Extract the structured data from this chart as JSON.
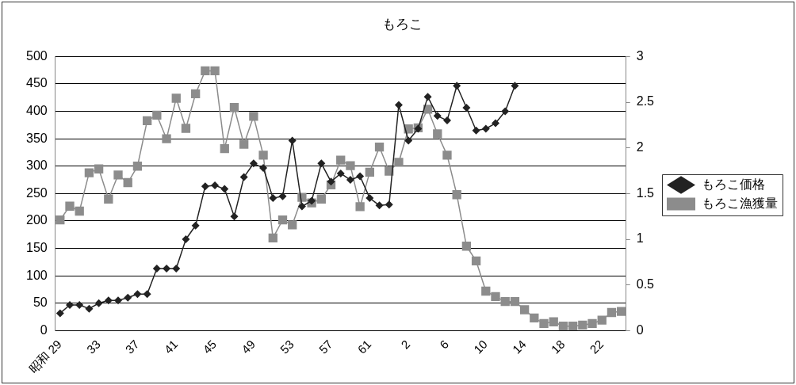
{
  "chart_data": {
    "type": "line",
    "title": "もろこ",
    "categories": [
      "昭和 29",
      null,
      null,
      null,
      "33",
      null,
      null,
      null,
      "37",
      null,
      null,
      null,
      "41",
      null,
      null,
      null,
      "45",
      null,
      null,
      null,
      "49",
      null,
      null,
      null,
      "53",
      null,
      null,
      null,
      "57",
      null,
      null,
      null,
      "61",
      null,
      null,
      null,
      "2",
      null,
      null,
      null,
      "6",
      null,
      null,
      null,
      "10",
      null,
      null,
      null,
      "14",
      null,
      null,
      null,
      "18",
      null,
      null,
      null,
      "22",
      null,
      null
    ],
    "series": [
      {
        "name": "もろこ漁獲量",
        "color": "#8c8c8c",
        "marker": "square",
        "values": [
          202,
          227,
          218,
          288,
          295,
          240,
          284,
          270,
          300,
          383,
          393,
          350,
          424,
          369,
          432,
          474,
          474,
          332,
          407,
          340,
          391,
          320,
          169,
          202,
          193,
          243,
          233,
          240,
          266,
          311,
          301,
          226,
          289,
          335,
          291,
          307,
          368,
          370,
          404,
          359,
          320,
          248,
          154,
          127,
          72,
          62,
          53,
          53,
          38,
          23,
          13,
          16,
          8,
          8,
          10,
          13,
          19,
          33,
          35
        ]
      },
      {
        "name": "もろこ価格",
        "color": "#222222",
        "marker": "diamond",
        "axis": "y2",
        "values": [
          0.19,
          0.28,
          0.28,
          0.24,
          0.3,
          0.33,
          0.33,
          0.36,
          0.4,
          0.4,
          0.68,
          0.68,
          0.68,
          1.0,
          1.15,
          1.58,
          1.59,
          1.55,
          1.25,
          1.68,
          1.83,
          1.78,
          1.45,
          1.47,
          2.08,
          1.36,
          1.42,
          1.83,
          1.63,
          1.72,
          1.65,
          1.69,
          1.45,
          1.37,
          1.38,
          2.47,
          2.08,
          2.21,
          2.56,
          2.35,
          2.3,
          2.68,
          2.44,
          2.19,
          2.21,
          2.27,
          2.4,
          2.68,
          null,
          null,
          null,
          null,
          null,
          null,
          null,
          null,
          null,
          null,
          null
        ]
      }
    ],
    "ylim": [
      0,
      500
    ],
    "yticks": [
      0,
      50,
      100,
      150,
      200,
      250,
      300,
      350,
      400,
      450,
      500
    ],
    "y2lim": [
      0,
      3
    ],
    "y2ticks": [
      0,
      0.5,
      1,
      1.5,
      2,
      2.5,
      3
    ],
    "grid": "y",
    "legend": "right"
  }
}
